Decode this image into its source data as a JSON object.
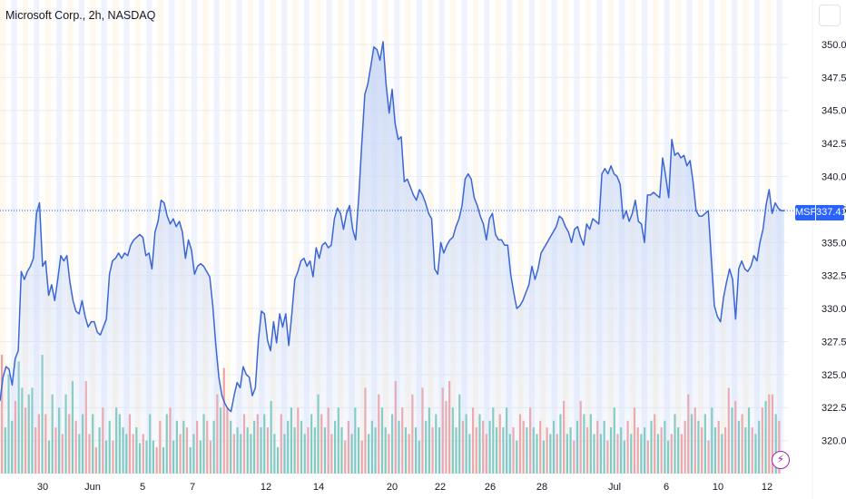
{
  "header": {
    "title": "Microsoft Corp., 2h, NASDAQ"
  },
  "price_tag": {
    "symbol": "MSFT",
    "value": "337.41"
  },
  "colors": {
    "line": "#3a66d6",
    "area": "#c7d6f6",
    "volume_up": "#78c9bd",
    "volume_down": "#f0a2a2",
    "band_a": "#fdf2de",
    "band_b": "#e3e9fb",
    "accent": "#2962ff"
  },
  "icons": {
    "bolt": "lightning-icon"
  },
  "chart_data": {
    "type": "line",
    "title": "Microsoft Corp., 2h, NASDAQ",
    "xlabel": "",
    "ylabel": "",
    "ylim": [
      317.5,
      351.3
    ],
    "yticks": [
      "350.00",
      "347.50",
      "345.00",
      "342.50",
      "340.00",
      "337.50",
      "335.00",
      "332.50",
      "330.00",
      "327.50",
      "325.00",
      "322.50",
      "320.00"
    ],
    "xticks": [
      "30",
      "Jun",
      "5",
      "7",
      "12",
      "14",
      "20",
      "22",
      "26",
      "28",
      "Jul",
      "6",
      "10",
      "12"
    ],
    "grid": true,
    "last_price": 337.41,
    "series": [
      {
        "values": [
          323.0,
          324.8,
          325.6,
          325.4,
          324.2,
          326.2,
          326.8,
          332.8,
          332.2,
          332.8,
          333.2,
          333.8,
          337.2,
          338.0,
          333.2,
          333.6,
          331.0,
          331.8,
          330.6,
          332.2,
          334.0,
          333.6,
          334.0,
          332.0,
          330.6,
          329.8,
          329.6,
          330.6,
          329.4,
          328.6,
          329.0,
          329.0,
          328.2,
          328.0,
          328.6,
          329.2,
          332.6,
          333.6,
          333.8,
          334.2,
          333.8,
          334.2,
          334.0,
          334.8,
          335.2,
          335.4,
          335.6,
          335.4,
          334.0,
          334.2,
          333.0,
          335.8,
          336.6,
          338.2,
          338.0,
          337.0,
          336.4,
          336.8,
          336.2,
          336.6,
          335.8,
          333.8,
          335.2,
          334.4,
          332.6,
          333.2,
          333.4,
          333.2,
          332.8,
          332.4,
          330.2,
          327.2,
          324.8,
          323.4,
          322.8,
          322.4,
          322.2,
          323.4,
          324.4,
          324.0,
          325.6,
          325.0,
          324.8,
          323.4,
          324.0,
          327.6,
          329.8,
          329.6,
          327.6,
          326.8,
          329.0,
          327.4,
          329.6,
          328.6,
          329.6,
          327.2,
          329.6,
          332.2,
          332.8,
          333.6,
          333.8,
          333.2,
          333.6,
          332.4,
          334.6,
          333.8,
          334.8,
          335.0,
          334.6,
          334.8,
          336.8,
          337.6,
          337.2,
          336.0,
          337.2,
          337.8,
          336.0,
          335.2,
          338.4,
          342.4,
          346.2,
          347.0,
          348.4,
          349.8,
          349.6,
          348.8,
          350.2,
          347.0,
          344.8,
          346.6,
          344.0,
          342.8,
          343.0,
          339.6,
          339.8,
          339.2,
          338.6,
          338.2,
          339.0,
          338.6,
          338.0,
          337.2,
          336.8,
          333.0,
          332.6,
          335.0,
          334.2,
          334.8,
          335.2,
          335.4,
          336.2,
          336.8,
          337.8,
          339.8,
          340.2,
          339.8,
          338.4,
          337.8,
          337.0,
          336.4,
          335.2,
          336.8,
          337.2,
          335.6,
          335.2,
          335.2,
          334.8,
          334.8,
          332.6,
          331.2,
          330.0,
          330.2,
          330.6,
          331.2,
          331.8,
          333.2,
          332.2,
          333.0,
          334.2,
          334.6,
          335.0,
          335.4,
          335.8,
          336.2,
          337.0,
          336.8,
          336.2,
          335.8,
          335.0,
          336.0,
          336.2,
          335.4,
          334.8,
          336.4,
          336.0,
          336.8,
          336.6,
          336.4,
          340.2,
          340.6,
          340.2,
          340.8,
          340.2,
          340.0,
          339.4,
          336.8,
          337.4,
          336.6,
          337.2,
          338.2,
          336.6,
          336.4,
          335.0,
          338.6,
          338.6,
          338.8,
          338.6,
          338.4,
          341.4,
          340.0,
          338.4,
          342.8,
          341.6,
          341.8,
          341.4,
          341.6,
          340.8,
          341.2,
          339.6,
          337.4,
          337.0,
          337.0,
          337.2,
          337.4,
          333.8,
          330.2,
          329.4,
          329.0,
          330.8,
          332.0,
          333.0,
          332.2,
          329.2,
          333.0,
          333.6,
          333.0,
          332.8,
          333.2,
          334.0,
          333.6,
          335.0,
          336.0,
          337.8,
          339.0,
          337.2,
          338.0,
          337.6,
          337.4,
          337.41
        ]
      }
    ],
    "volume": [
      {
        "v": 326.5,
        "up": false
      },
      {
        "v": 321.0,
        "up": true
      },
      {
        "v": 325.0,
        "up": true
      },
      {
        "v": 321.5,
        "up": true
      },
      {
        "v": 323.0,
        "up": false
      },
      {
        "v": 326.0,
        "up": true
      },
      {
        "v": 324.0,
        "up": true
      },
      {
        "v": 322.5,
        "up": false
      },
      {
        "v": 323.5,
        "up": true
      },
      {
        "v": 324.0,
        "up": true
      },
      {
        "v": 321.0,
        "up": false
      },
      {
        "v": 322.0,
        "up": false
      },
      {
        "v": 326.5,
        "up": true
      },
      {
        "v": 322.0,
        "up": false
      },
      {
        "v": 320.0,
        "up": true
      },
      {
        "v": 323.5,
        "up": true
      },
      {
        "v": 321.0,
        "up": false
      },
      {
        "v": 322.5,
        "up": true
      },
      {
        "v": 320.5,
        "up": false
      },
      {
        "v": 323.5,
        "up": true
      },
      {
        "v": 322.0,
        "up": false
      },
      {
        "v": 324.5,
        "up": true
      },
      {
        "v": 321.5,
        "up": false
      },
      {
        "v": 320.5,
        "up": true
      },
      {
        "v": 322.0,
        "up": true
      },
      {
        "v": 324.5,
        "up": false
      },
      {
        "v": 320.5,
        "up": false
      },
      {
        "v": 322.0,
        "up": true
      },
      {
        "v": 319.5,
        "up": false
      },
      {
        "v": 321.0,
        "up": true
      },
      {
        "v": 322.5,
        "up": false
      },
      {
        "v": 320.0,
        "up": true
      },
      {
        "v": 321.5,
        "up": true
      },
      {
        "v": 320.0,
        "up": false
      },
      {
        "v": 322.5,
        "up": true
      },
      {
        "v": 322.0,
        "up": true
      },
      {
        "v": 321.0,
        "up": true
      },
      {
        "v": 320.5,
        "up": true
      },
      {
        "v": 322.0,
        "up": false
      },
      {
        "v": 320.5,
        "up": false
      },
      {
        "v": 321.0,
        "up": true
      },
      {
        "v": 319.8,
        "up": true
      },
      {
        "v": 320.5,
        "up": false
      },
      {
        "v": 320.0,
        "up": true
      },
      {
        "v": 322.0,
        "up": true
      },
      {
        "v": 320.0,
        "up": true
      },
      {
        "v": 319.5,
        "up": false
      },
      {
        "v": 321.5,
        "up": false
      },
      {
        "v": 319.5,
        "up": true
      },
      {
        "v": 322.0,
        "up": true
      },
      {
        "v": 322.5,
        "up": false
      },
      {
        "v": 320.0,
        "up": true
      },
      {
        "v": 321.5,
        "up": true
      },
      {
        "v": 320.5,
        "up": false
      },
      {
        "v": 321.5,
        "up": true
      },
      {
        "v": 321.0,
        "up": false
      },
      {
        "v": 319.5,
        "up": true
      },
      {
        "v": 320.5,
        "up": true
      },
      {
        "v": 321.5,
        "up": false
      },
      {
        "v": 320.0,
        "up": true
      },
      {
        "v": 322.0,
        "up": true
      },
      {
        "v": 321.5,
        "up": false
      },
      {
        "v": 320.0,
        "up": false
      },
      {
        "v": 321.5,
        "up": true
      },
      {
        "v": 323.5,
        "up": false
      },
      {
        "v": 322.5,
        "up": true
      },
      {
        "v": 325.5,
        "up": false
      },
      {
        "v": 322.5,
        "up": false
      },
      {
        "v": 321.5,
        "up": true
      },
      {
        "v": 320.5,
        "up": false
      },
      {
        "v": 321.0,
        "up": true
      },
      {
        "v": 320.5,
        "up": true
      },
      {
        "v": 322.0,
        "up": false
      },
      {
        "v": 321.0,
        "up": true
      },
      {
        "v": 320.5,
        "up": true
      },
      {
        "v": 321.5,
        "up": true
      },
      {
        "v": 322.0,
        "up": false
      },
      {
        "v": 321.0,
        "up": true
      },
      {
        "v": 322.0,
        "up": true
      },
      {
        "v": 321.0,
        "up": false
      },
      {
        "v": 323.0,
        "up": true
      },
      {
        "v": 320.5,
        "up": true
      },
      {
        "v": 319.5,
        "up": true
      },
      {
        "v": 322.0,
        "up": false
      },
      {
        "v": 320.5,
        "up": true
      },
      {
        "v": 321.5,
        "up": true
      },
      {
        "v": 322.5,
        "up": true
      },
      {
        "v": 321.0,
        "up": true
      },
      {
        "v": 322.5,
        "up": false
      },
      {
        "v": 321.5,
        "up": true
      },
      {
        "v": 320.5,
        "up": true
      },
      {
        "v": 321.0,
        "up": false
      },
      {
        "v": 322.0,
        "up": true
      },
      {
        "v": 321.0,
        "up": true
      },
      {
        "v": 323.5,
        "up": true
      },
      {
        "v": 322.0,
        "up": false
      },
      {
        "v": 321.0,
        "up": true
      },
      {
        "v": 322.5,
        "up": false
      },
      {
        "v": 320.5,
        "up": false
      },
      {
        "v": 321.5,
        "up": true
      },
      {
        "v": 322.5,
        "up": true
      },
      {
        "v": 321.0,
        "up": true
      },
      {
        "v": 320.0,
        "up": false
      },
      {
        "v": 321.5,
        "up": false
      },
      {
        "v": 320.5,
        "up": true
      },
      {
        "v": 322.5,
        "up": true
      },
      {
        "v": 321.0,
        "up": true
      },
      {
        "v": 320.0,
        "up": false
      },
      {
        "v": 324.0,
        "up": false
      },
      {
        "v": 320.5,
        "up": true
      },
      {
        "v": 321.5,
        "up": true
      },
      {
        "v": 321.0,
        "up": true
      },
      {
        "v": 323.5,
        "up": false
      },
      {
        "v": 322.5,
        "up": true
      },
      {
        "v": 321.0,
        "up": true
      },
      {
        "v": 320.5,
        "up": false
      },
      {
        "v": 322.0,
        "up": true
      },
      {
        "v": 324.5,
        "up": false
      },
      {
        "v": 321.5,
        "up": true
      },
      {
        "v": 322.5,
        "up": false
      },
      {
        "v": 321.0,
        "up": true
      },
      {
        "v": 320.5,
        "up": false
      },
      {
        "v": 323.5,
        "up": false
      },
      {
        "v": 321.0,
        "up": true
      },
      {
        "v": 320.0,
        "up": true
      },
      {
        "v": 324.0,
        "up": false
      },
      {
        "v": 321.5,
        "up": true
      },
      {
        "v": 322.5,
        "up": true
      },
      {
        "v": 321.0,
        "up": false
      },
      {
        "v": 322.0,
        "up": true
      },
      {
        "v": 321.0,
        "up": true
      },
      {
        "v": 324.0,
        "up": false
      },
      {
        "v": 323.0,
        "up": false
      },
      {
        "v": 324.5,
        "up": false
      },
      {
        "v": 322.5,
        "up": true
      },
      {
        "v": 321.0,
        "up": true
      },
      {
        "v": 323.5,
        "up": true
      },
      {
        "v": 321.5,
        "up": false
      },
      {
        "v": 322.0,
        "up": true
      },
      {
        "v": 320.5,
        "up": true
      },
      {
        "v": 322.5,
        "up": false
      },
      {
        "v": 321.0,
        "up": false
      },
      {
        "v": 322.0,
        "up": true
      },
      {
        "v": 321.5,
        "up": false
      },
      {
        "v": 320.5,
        "up": false
      },
      {
        "v": 321.5,
        "up": true
      },
      {
        "v": 322.5,
        "up": true
      },
      {
        "v": 321.0,
        "up": true
      },
      {
        "v": 322.0,
        "up": false
      },
      {
        "v": 321.0,
        "up": true
      },
      {
        "v": 322.5,
        "up": true
      },
      {
        "v": 320.5,
        "up": true
      },
      {
        "v": 321.0,
        "up": false
      },
      {
        "v": 320.0,
        "up": true
      },
      {
        "v": 322.0,
        "up": false
      },
      {
        "v": 321.5,
        "up": false
      },
      {
        "v": 321.0,
        "up": true
      },
      {
        "v": 322.5,
        "up": false
      },
      {
        "v": 321.0,
        "up": true
      },
      {
        "v": 320.5,
        "up": true
      },
      {
        "v": 321.5,
        "up": false
      },
      {
        "v": 320.0,
        "up": true
      },
      {
        "v": 321.0,
        "up": false
      },
      {
        "v": 320.5,
        "up": true
      },
      {
        "v": 321.5,
        "up": true
      },
      {
        "v": 320.5,
        "up": false
      },
      {
        "v": 322.0,
        "up": true
      },
      {
        "v": 323.0,
        "up": false
      },
      {
        "v": 320.5,
        "up": true
      },
      {
        "v": 321.0,
        "up": true
      },
      {
        "v": 320.0,
        "up": false
      },
      {
        "v": 321.5,
        "up": true
      },
      {
        "v": 323.0,
        "up": false
      },
      {
        "v": 322.0,
        "up": true
      },
      {
        "v": 321.0,
        "up": false
      },
      {
        "v": 322.0,
        "up": true
      },
      {
        "v": 320.5,
        "up": true
      },
      {
        "v": 321.5,
        "up": false
      },
      {
        "v": 320.5,
        "up": true
      },
      {
        "v": 321.5,
        "up": true
      },
      {
        "v": 320.0,
        "up": false
      },
      {
        "v": 321.0,
        "up": true
      },
      {
        "v": 322.5,
        "up": true
      },
      {
        "v": 320.5,
        "up": false
      },
      {
        "v": 321.0,
        "up": true
      },
      {
        "v": 320.0,
        "up": true
      },
      {
        "v": 321.5,
        "up": false
      },
      {
        "v": 320.5,
        "up": true
      },
      {
        "v": 322.5,
        "up": false
      },
      {
        "v": 321.0,
        "up": false
      },
      {
        "v": 320.5,
        "up": true
      },
      {
        "v": 321.0,
        "up": true
      },
      {
        "v": 320.0,
        "up": false
      },
      {
        "v": 321.5,
        "up": true
      },
      {
        "v": 322.0,
        "up": false
      },
      {
        "v": 320.5,
        "up": true
      },
      {
        "v": 321.0,
        "up": false
      },
      {
        "v": 321.5,
        "up": true
      },
      {
        "v": 320.0,
        "up": true
      },
      {
        "v": 320.5,
        "up": false
      },
      {
        "v": 322.0,
        "up": true
      },
      {
        "v": 321.0,
        "up": true
      },
      {
        "v": 320.5,
        "up": false
      },
      {
        "v": 321.5,
        "up": false
      },
      {
        "v": 323.5,
        "up": false
      },
      {
        "v": 322.0,
        "up": true
      },
      {
        "v": 322.5,
        "up": false
      },
      {
        "v": 321.5,
        "up": true
      },
      {
        "v": 321.0,
        "up": false
      },
      {
        "v": 322.0,
        "up": true
      },
      {
        "v": 320.0,
        "up": false
      },
      {
        "v": 322.5,
        "up": true
      },
      {
        "v": 321.0,
        "up": true
      },
      {
        "v": 321.5,
        "up": false
      },
      {
        "v": 320.5,
        "up": true
      },
      {
        "v": 321.0,
        "up": false
      },
      {
        "v": 324.0,
        "up": false
      },
      {
        "v": 322.5,
        "up": true
      },
      {
        "v": 323.0,
        "up": false
      },
      {
        "v": 321.5,
        "up": true
      },
      {
        "v": 322.0,
        "up": false
      },
      {
        "v": 321.0,
        "up": true
      },
      {
        "v": 322.5,
        "up": true
      },
      {
        "v": 321.0,
        "up": false
      },
      {
        "v": 320.5,
        "up": true
      },
      {
        "v": 321.5,
        "up": true
      },
      {
        "v": 322.5,
        "up": false
      },
      {
        "v": 323.0,
        "up": true
      },
      {
        "v": 323.5,
        "up": false
      },
      {
        "v": 323.5,
        "up": false
      },
      {
        "v": 322.0,
        "up": true
      },
      {
        "v": 321.5,
        "up": false
      }
    ]
  }
}
